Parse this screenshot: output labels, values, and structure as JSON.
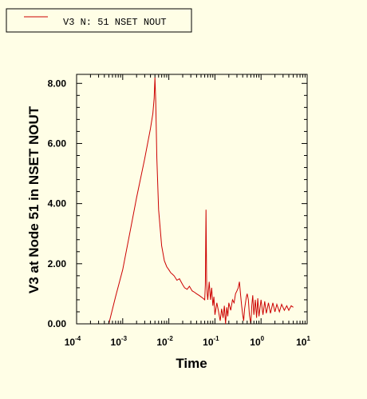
{
  "chart_data": {
    "type": "line",
    "xlabel": "Time",
    "ylabel": "V3 at Node 51 in NSET NOUT",
    "x_scale": "log",
    "xlim": [
      0.0001,
      10
    ],
    "ylim": [
      0,
      8.3
    ],
    "x_ticks": [
      {
        "base": "10",
        "exp": "-4",
        "value": 0.0001
      },
      {
        "base": "10",
        "exp": "-3",
        "value": 0.001
      },
      {
        "base": "10",
        "exp": "-2",
        "value": 0.01
      },
      {
        "base": "10",
        "exp": "-1",
        "value": 0.1
      },
      {
        "base": "10",
        "exp": "0",
        "value": 1
      },
      {
        "base": "10",
        "exp": "1",
        "value": 10
      }
    ],
    "y_ticks": [
      {
        "label": "0.00",
        "value": 0
      },
      {
        "label": "2.00",
        "value": 2
      },
      {
        "label": "4.00",
        "value": 4
      },
      {
        "label": "6.00",
        "value": 6
      },
      {
        "label": "8.00",
        "value": 8
      }
    ],
    "legend": {
      "entry": "V3 N: 51 NSET NOUT",
      "placement": "top-left"
    },
    "grid": false,
    "series": [
      {
        "name": "V3 N: 51 NSET NOUT",
        "color": "#cc0000",
        "x": [
          0.0005,
          0.0007,
          0.001,
          0.0015,
          0.002,
          0.003,
          0.004,
          0.0045,
          0.0048,
          0.005,
          0.0052,
          0.0055,
          0.006,
          0.007,
          0.008,
          0.009,
          0.01,
          0.011,
          0.012,
          0.013,
          0.015,
          0.017,
          0.02,
          0.022,
          0.025,
          0.028,
          0.032,
          0.036,
          0.04,
          0.045,
          0.05,
          0.055,
          0.06,
          0.062,
          0.064,
          0.066,
          0.068,
          0.07,
          0.075,
          0.08,
          0.085,
          0.09,
          0.095,
          0.1,
          0.11,
          0.12,
          0.13,
          0.14,
          0.15,
          0.16,
          0.17,
          0.18,
          0.19,
          0.2,
          0.22,
          0.24,
          0.26,
          0.28,
          0.3,
          0.32,
          0.34,
          0.36,
          0.38,
          0.4,
          0.42,
          0.44,
          0.46,
          0.48,
          0.5,
          0.53,
          0.56,
          0.6,
          0.63,
          0.66,
          0.7,
          0.75,
          0.8,
          0.85,
          0.9,
          1.0,
          1.1,
          1.2,
          1.3,
          1.45,
          1.6,
          1.8,
          2.0,
          2.2,
          2.5,
          2.8,
          3.2,
          3.6,
          4.0,
          4.5,
          5.0
        ],
        "y": [
          0.0,
          0.9,
          1.8,
          3.2,
          4.2,
          5.5,
          6.5,
          7.0,
          7.5,
          8.2,
          7.4,
          5.5,
          3.8,
          2.6,
          2.1,
          1.9,
          1.8,
          1.7,
          1.65,
          1.6,
          1.45,
          1.5,
          1.3,
          1.2,
          1.15,
          1.25,
          1.1,
          1.05,
          1.0,
          0.95,
          0.9,
          0.85,
          0.8,
          1.3,
          3.8,
          1.4,
          1.0,
          0.8,
          1.4,
          0.8,
          1.2,
          0.6,
          0.9,
          0.3,
          0.7,
          0.4,
          0.1,
          0.5,
          0.2,
          0.6,
          0.0,
          0.55,
          0.25,
          0.7,
          0.45,
          0.8,
          0.7,
          1.0,
          1.1,
          1.2,
          1.4,
          0.95,
          0.6,
          0.3,
          0.1,
          0.5,
          0.7,
          0.9,
          1.0,
          0.8,
          0.3,
          0.0,
          0.6,
          0.95,
          0.3,
          0.8,
          0.2,
          0.85,
          0.25,
          0.8,
          0.3,
          0.75,
          0.35,
          0.7,
          0.35,
          0.7,
          0.4,
          0.65,
          0.4,
          0.65,
          0.45,
          0.6,
          0.45,
          0.6,
          0.55
        ]
      }
    ]
  }
}
